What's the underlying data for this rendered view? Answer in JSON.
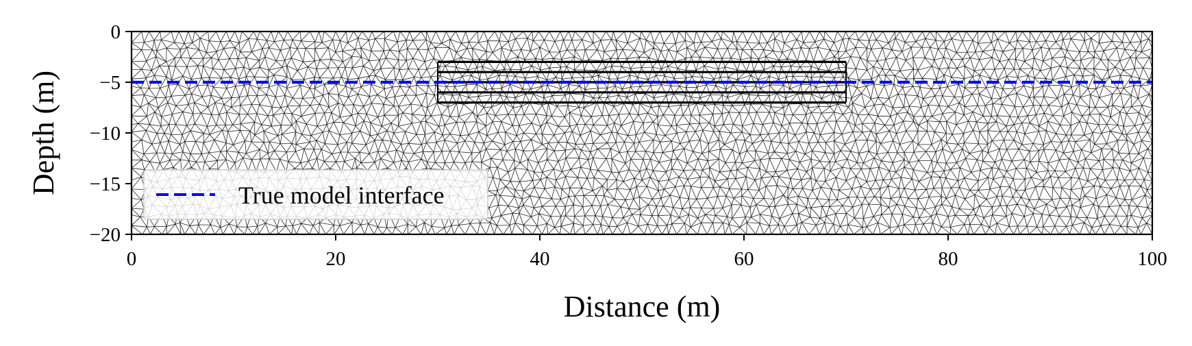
{
  "chart_data": {
    "type": "line",
    "title": "",
    "xlabel": "Distance (m)",
    "ylabel": "Depth (m)",
    "xlim": [
      0,
      100
    ],
    "ylim": [
      -20,
      0
    ],
    "xticks": [
      0,
      20,
      40,
      60,
      80,
      100
    ],
    "yticks": [
      0,
      -5,
      -10,
      -15,
      -20
    ],
    "xtick_labels": [
      "0",
      "20",
      "40",
      "60",
      "80",
      "100"
    ],
    "ytick_labels": [
      "0",
      "−5",
      "−10",
      "−15",
      "−20"
    ],
    "grid": false,
    "background": "triangular mesh",
    "series": [
      {
        "name": "True model interface",
        "style": "dashed",
        "color": "#0000ff",
        "x": [
          0,
          100
        ],
        "y": [
          -5,
          -5
        ]
      }
    ],
    "refined_region": {
      "x_range": [
        30,
        70
      ],
      "y_levels": [
        -3,
        -4,
        -5,
        -6,
        -7
      ],
      "color": "#000000"
    },
    "legend": {
      "placement": "lower-left",
      "entries": [
        "True model interface"
      ]
    }
  }
}
